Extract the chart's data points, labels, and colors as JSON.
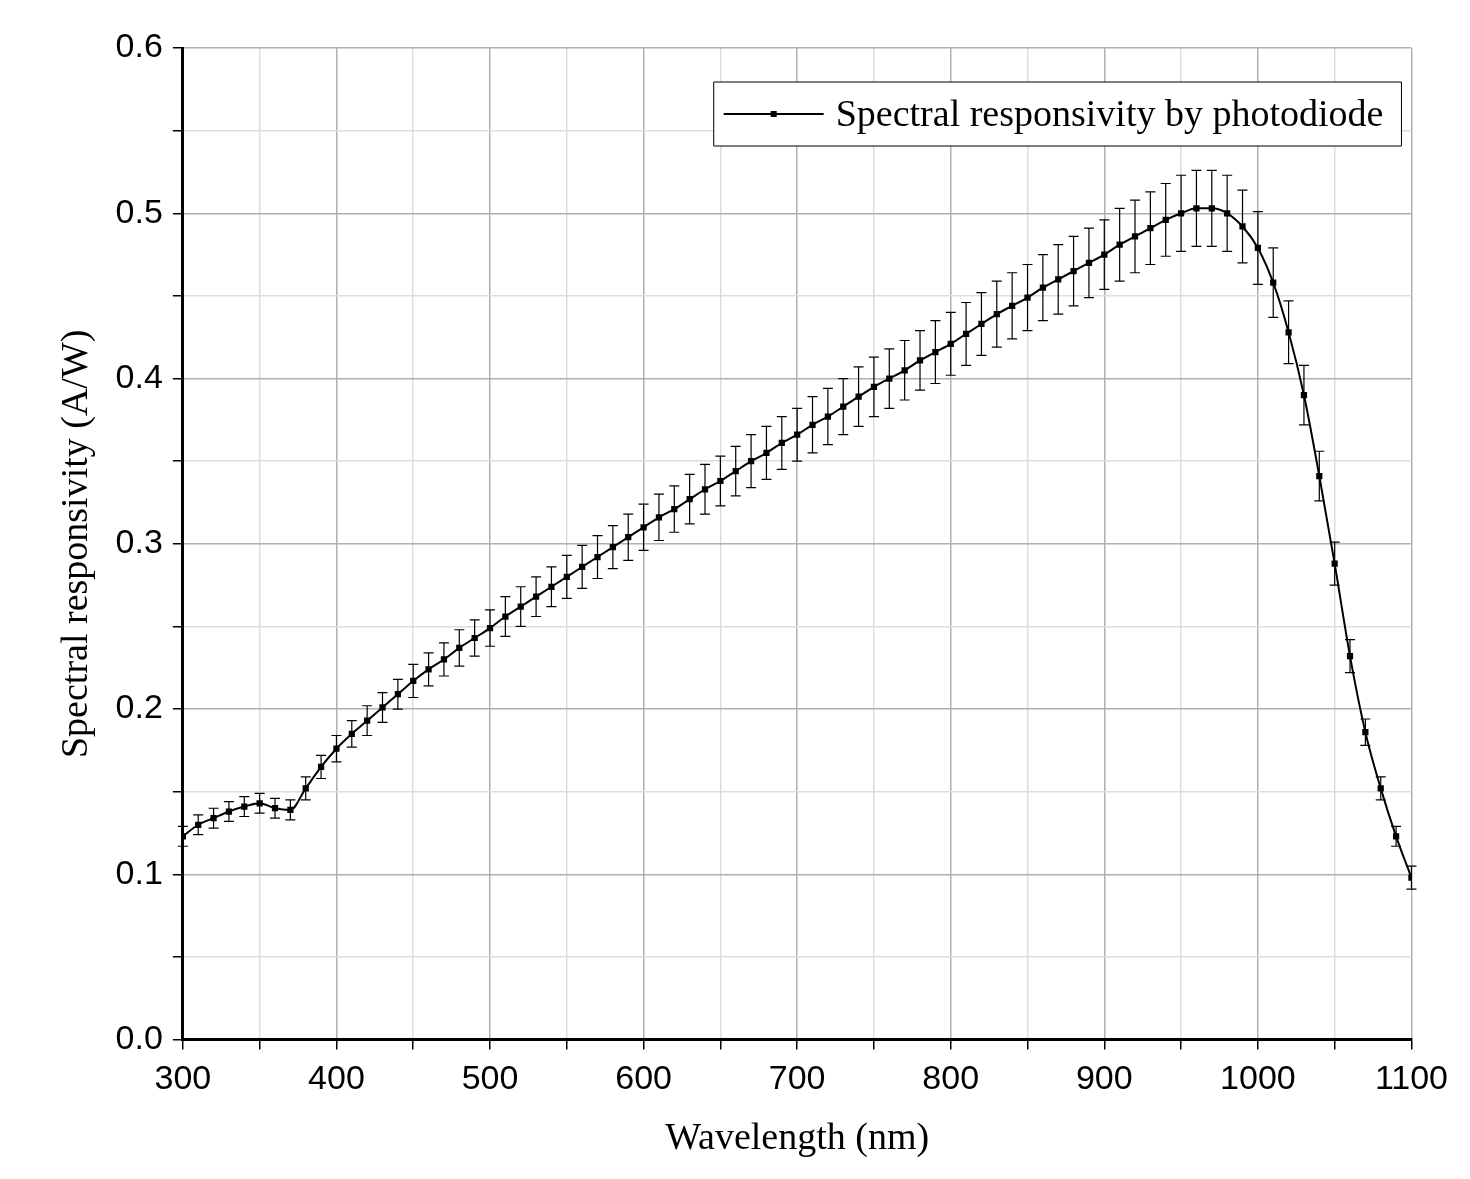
{
  "chart_data": {
    "type": "line",
    "xlabel": "Wavelength (nm)",
    "ylabel": "Spectral responsivity (A/W)",
    "xlim": [
      300,
      1100
    ],
    "xticks": [
      300,
      {
        "value": 350,
        "label": null
      },
      400,
      {
        "value": 450,
        "label": null
      },
      500,
      {
        "value": 550,
        "label": null
      },
      600,
      {
        "value": 650,
        "label": null
      },
      700,
      {
        "value": 750,
        "label": null
      },
      800,
      {
        "value": 850,
        "label": null
      },
      900,
      {
        "value": 950,
        "label": null
      },
      1000,
      {
        "value": 1050,
        "label": null
      },
      1100
    ],
    "ylim": [
      0,
      0.6
    ],
    "yticks": [
      {
        "value": 0,
        "label": "0.0"
      },
      {
        "value": 0.05,
        "label": null
      },
      0.1,
      {
        "value": 0.15,
        "label": null
      },
      0.2,
      {
        "value": 0.25,
        "label": null
      },
      0.3,
      {
        "value": 0.35,
        "label": null
      },
      0.4,
      {
        "value": 0.45,
        "label": null
      },
      0.5,
      {
        "value": 0.55,
        "label": null
      },
      0.6
    ],
    "grid": true,
    "legend": "top right",
    "marker": "square",
    "line_style": "solid",
    "x": [
      300,
      310,
      320,
      330,
      340,
      350,
      360,
      370,
      380,
      390,
      400,
      410,
      420,
      430,
      440,
      450,
      460,
      470,
      480,
      490,
      500,
      510,
      520,
      530,
      540,
      550,
      560,
      570,
      580,
      590,
      600,
      610,
      620,
      630,
      640,
      650,
      660,
      670,
      680,
      690,
      700,
      710,
      720,
      730,
      740,
      750,
      760,
      770,
      780,
      790,
      800,
      810,
      820,
      830,
      840,
      850,
      860,
      870,
      880,
      890,
      900,
      910,
      920,
      930,
      940,
      950,
      960,
      970,
      980,
      990,
      1000,
      1010,
      1020,
      1030,
      1040,
      1050,
      1060,
      1070,
      1080,
      1090,
      1100
    ],
    "series": [
      {
        "name": "Spectral responsivity by photodiode",
        "color": "#000000",
        "values": [
          0.123,
          0.13,
          0.134,
          0.138,
          0.141,
          0.143,
          0.14,
          0.139,
          0.152,
          0.165,
          0.176,
          0.185,
          0.193,
          0.201,
          0.209,
          0.217,
          0.224,
          0.23,
          0.237,
          0.243,
          0.249,
          0.256,
          0.262,
          0.268,
          0.274,
          0.28,
          0.286,
          0.292,
          0.298,
          0.304,
          0.31,
          0.316,
          0.321,
          0.327,
          0.333,
          0.338,
          0.344,
          0.35,
          0.355,
          0.361,
          0.366,
          0.372,
          0.377,
          0.383,
          0.389,
          0.395,
          0.4,
          0.405,
          0.411,
          0.416,
          0.421,
          0.427,
          0.433,
          0.439,
          0.444,
          0.449,
          0.455,
          0.46,
          0.465,
          0.47,
          0.475,
          0.481,
          0.486,
          0.491,
          0.496,
          0.5,
          0.503,
          0.503,
          0.5,
          0.492,
          0.479,
          0.458,
          0.428,
          0.39,
          0.341,
          0.288,
          0.232,
          0.186,
          0.152,
          0.123,
          0.098
        ],
        "errors": [
          0.006,
          0.006,
          0.006,
          0.006,
          0.006,
          0.006,
          0.006,
          0.006,
          0.007,
          0.007,
          0.008,
          0.008,
          0.009,
          0.009,
          0.009,
          0.01,
          0.01,
          0.01,
          0.011,
          0.011,
          0.011,
          0.012,
          0.012,
          0.012,
          0.012,
          0.013,
          0.013,
          0.013,
          0.013,
          0.014,
          0.014,
          0.014,
          0.014,
          0.015,
          0.015,
          0.015,
          0.015,
          0.016,
          0.016,
          0.016,
          0.016,
          0.017,
          0.017,
          0.017,
          0.018,
          0.018,
          0.018,
          0.018,
          0.018,
          0.019,
          0.019,
          0.019,
          0.019,
          0.02,
          0.02,
          0.02,
          0.02,
          0.021,
          0.021,
          0.021,
          0.021,
          0.022,
          0.022,
          0.022,
          0.022,
          0.023,
          0.023,
          0.023,
          0.023,
          0.022,
          0.022,
          0.021,
          0.019,
          0.018,
          0.015,
          0.013,
          0.01,
          0.008,
          0.007,
          0.006,
          0.007
        ]
      }
    ]
  }
}
